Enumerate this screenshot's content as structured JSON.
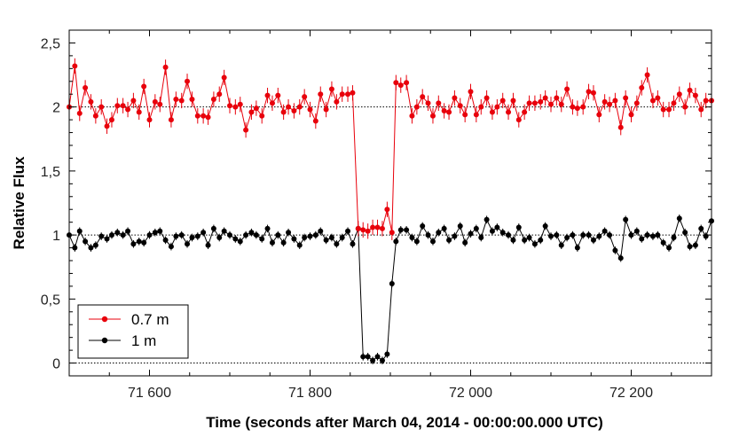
{
  "chart_data": {
    "type": "line",
    "xlabel": "Time (seconds after March 04, 2014 - 00:00:00.000 UTC)",
    "ylabel": "Relative Flux",
    "xlim": [
      71500,
      72300
    ],
    "ylim": [
      -0.1,
      2.6
    ],
    "x_ticks": [
      71600,
      71800,
      72000,
      72200
    ],
    "x_tick_labels": [
      "71 600",
      "71 800",
      "72 000",
      "72 200"
    ],
    "y_ticks": [
      0,
      0.5,
      1,
      1.5,
      2,
      2.5
    ],
    "y_tick_labels": [
      "0",
      "0,5",
      "1",
      "1,5",
      "2",
      "2,5"
    ],
    "reference_lines": [
      0,
      1,
      2
    ],
    "grid": false,
    "legend_position": "bottom-left",
    "error_bar_halfwidth": [
      0.06,
      0.03
    ],
    "series": [
      {
        "name": "0.7 m",
        "color": "#e8000b",
        "x": [
          71500,
          71507,
          71513,
          71520,
          71527,
          71533,
          71540,
          71547,
          71553,
          71560,
          71567,
          71573,
          71580,
          71587,
          71593,
          71600,
          71607,
          71613,
          71620,
          71627,
          71633,
          71640,
          71647,
          71653,
          71660,
          71667,
          71673,
          71680,
          71687,
          71693,
          71700,
          71707,
          71713,
          71720,
          71727,
          71733,
          71740,
          71747,
          71753,
          71760,
          71767,
          71773,
          71780,
          71787,
          71793,
          71800,
          71807,
          71813,
          71820,
          71827,
          71833,
          71840,
          71847,
          71853,
          71860,
          71866,
          71872,
          71878,
          71884,
          71890,
          71896,
          71902,
          71907,
          71913,
          71920,
          71927,
          71933,
          71940,
          71947,
          71953,
          71960,
          71967,
          71973,
          71980,
          71987,
          71993,
          72000,
          72007,
          72013,
          72020,
          72027,
          72033,
          72040,
          72047,
          72053,
          72060,
          72067,
          72073,
          72080,
          72087,
          72093,
          72100,
          72107,
          72113,
          72120,
          72127,
          72133,
          72140,
          72147,
          72153,
          72160,
          72167,
          72173,
          72180,
          72187,
          72193,
          72200,
          72207,
          72213,
          72220,
          72227,
          72233,
          72240,
          72247,
          72253,
          72260,
          72267,
          72273,
          72280,
          72287,
          72293,
          72300
        ],
        "y": [
          2.0,
          2.32,
          1.95,
          2.15,
          2.04,
          1.93,
          2.0,
          1.85,
          1.9,
          2.01,
          2.01,
          1.98,
          2.05,
          1.96,
          2.16,
          1.9,
          2.04,
          2.02,
          2.31,
          1.9,
          2.06,
          2.05,
          2.2,
          2.06,
          1.93,
          1.93,
          1.92,
          2.06,
          2.1,
          2.23,
          2.01,
          2.0,
          2.02,
          1.82,
          1.96,
          1.99,
          1.93,
          2.09,
          2.03,
          2.09,
          1.96,
          2.0,
          1.97,
          2.0,
          2.08,
          1.98,
          1.89,
          2.1,
          1.98,
          2.14,
          2.04,
          2.1,
          2.1,
          2.11,
          2.2,
          1.91,
          2.05,
          2.0,
          2.11,
          2.16,
          2.0,
          2.05,
          2.19,
          2.17,
          2.19,
          1.93,
          2.0,
          2.08,
          2.03,
          1.93,
          2.03,
          1.97,
          1.96,
          2.07,
          2.01,
          1.94,
          2.12,
          1.94,
          2.0,
          2.07,
          1.96,
          2.0,
          2.05,
          1.96,
          2.05,
          1.9,
          1.96,
          2.03,
          2.03,
          2.04,
          2.07,
          2.02,
          2.07,
          2.02,
          2.14,
          2.0,
          1.99,
          2.0,
          2.12,
          2.11,
          1.94,
          2.04,
          2.02,
          2.05,
          1.84,
          2.07,
          1.94,
          2.03,
          2.15,
          2.25,
          2.05,
          2.07,
          1.98,
          1.98,
          2.03,
          2.1,
          2.0,
          2.13,
          2.09,
          1.98,
          2.05,
          2.05
        ],
        "dip_x": [
          71860,
          71866,
          71872,
          71878,
          71884,
          71890,
          71896,
          71902
        ],
        "dip_y": [
          1.05,
          1.04,
          1.03,
          1.06,
          1.06,
          1.05,
          1.2,
          1.02
        ]
      },
      {
        "name": "1 m",
        "color": "#000000",
        "x": [
          71500,
          71507,
          71513,
          71520,
          71527,
          71533,
          71540,
          71547,
          71553,
          71560,
          71567,
          71573,
          71580,
          71587,
          71593,
          71600,
          71607,
          71613,
          71620,
          71627,
          71633,
          71640,
          71647,
          71653,
          71660,
          71667,
          71673,
          71680,
          71687,
          71693,
          71700,
          71707,
          71713,
          71720,
          71727,
          71733,
          71740,
          71747,
          71753,
          71760,
          71767,
          71773,
          71780,
          71787,
          71793,
          71800,
          71807,
          71813,
          71820,
          71827,
          71833,
          71840,
          71847,
          71853,
          71860,
          71866,
          71872,
          71878,
          71884,
          71890,
          71896,
          71902,
          71907,
          71913,
          71920,
          71927,
          71933,
          71940,
          71947,
          71953,
          71960,
          71967,
          71973,
          71980,
          71987,
          71993,
          72000,
          72007,
          72013,
          72020,
          72027,
          72033,
          72040,
          72047,
          72053,
          72060,
          72067,
          72073,
          72080,
          72087,
          72093,
          72100,
          72107,
          72113,
          72120,
          72127,
          72133,
          72140,
          72147,
          72153,
          72160,
          72167,
          72173,
          72180,
          72187,
          72193,
          72200,
          72207,
          72213,
          72220,
          72227,
          72233,
          72240,
          72247,
          72253,
          72260,
          72267,
          72273,
          72280,
          72287,
          72293,
          72300
        ],
        "y": [
          1.0,
          0.9,
          1.03,
          0.95,
          0.9,
          0.92,
          0.99,
          0.97,
          1.0,
          1.02,
          1.0,
          1.03,
          0.93,
          0.95,
          0.94,
          1.0,
          1.02,
          1.03,
          0.96,
          0.91,
          0.99,
          1.0,
          0.93,
          0.98,
          0.99,
          1.02,
          0.92,
          1.05,
          0.98,
          1.03,
          1.0,
          0.97,
          0.95,
          1.0,
          1.02,
          1.0,
          0.97,
          1.05,
          0.94,
          1.0,
          0.94,
          1.02,
          0.97,
          0.92,
          0.98,
          0.99,
          1.0,
          1.03,
          0.96,
          0.98,
          0.93,
          0.98,
          1.03,
          0.93,
          1.05,
          0.05,
          0.05,
          0.02,
          0.05,
          0.02,
          0.07,
          0.62,
          0.95,
          1.04,
          1.04,
          0.98,
          0.95,
          1.07,
          1.0,
          0.95,
          1.02,
          1.05,
          0.96,
          0.99,
          1.07,
          0.94,
          1.01,
          1.05,
          0.98,
          1.12,
          1.03,
          1.06,
          1.02,
          1.0,
          0.96,
          1.06,
          0.96,
          0.98,
          0.93,
          0.96,
          1.07,
          0.99,
          1.0,
          0.92,
          0.98,
          1.0,
          0.9,
          1.0,
          1.0,
          0.96,
          0.99,
          1.03,
          1.0,
          0.88,
          0.82,
          1.12,
          1.0,
          1.03,
          0.97,
          1.0,
          0.99,
          1.0,
          0.94,
          0.9,
          0.98,
          1.13,
          1.02,
          0.91,
          0.92,
          1.05,
          0.99,
          1.11
        ]
      }
    ]
  }
}
